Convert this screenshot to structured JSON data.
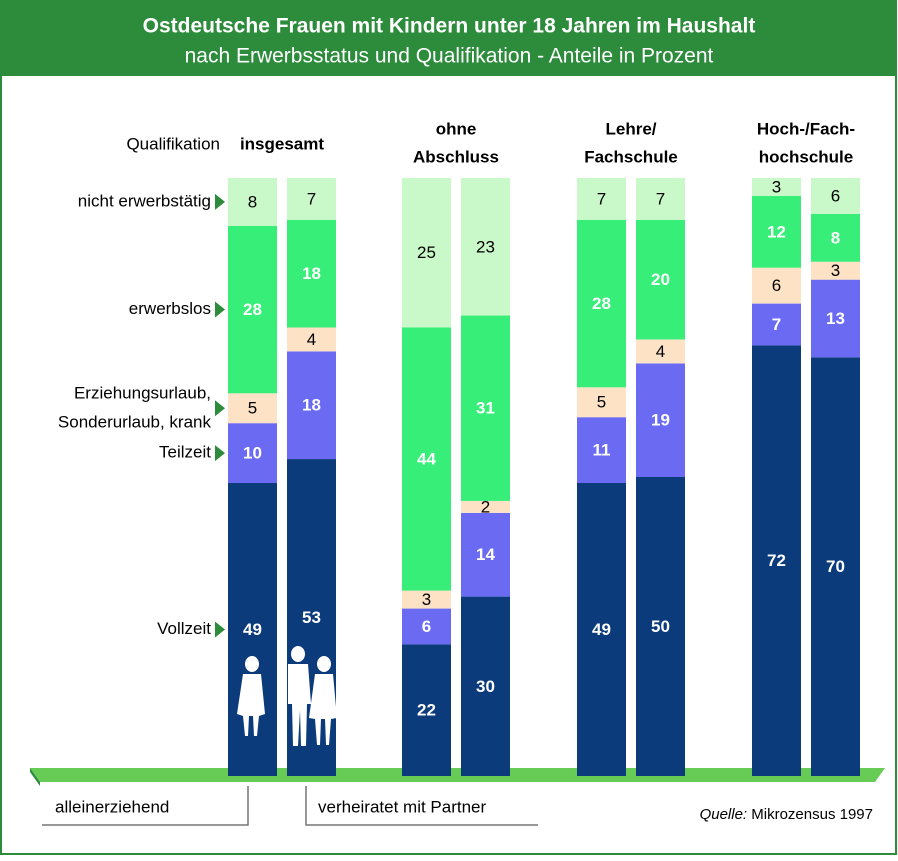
{
  "chart_data": {
    "type": "stacked-bar",
    "title": "Ostdeutsche Frauen mit Kindern unter 18 Jahren im Haushalt",
    "subtitle": "nach Erwerbsstatus und Qualifikation - Anteile in Prozent",
    "category_axis_label": "Qualifikation",
    "categories": [
      [
        "insgesamt"
      ],
      [
        "ohne",
        "Abschluss"
      ],
      [
        "Lehre/",
        "Fachschule"
      ],
      [
        "Hoch-/Fach-",
        "hochschule"
      ]
    ],
    "subgroups": [
      "alleinerziehend",
      "verheiratet mit Partner"
    ],
    "series": [
      {
        "name": "Vollzeit",
        "color": "#0b3b7b",
        "label_color": "#ffffff",
        "values": [
          [
            49,
            53
          ],
          [
            22,
            30
          ],
          [
            49,
            50
          ],
          [
            72,
            70
          ]
        ]
      },
      {
        "name": "Teilzeit",
        "color": "#6a6af2",
        "label_color": "#ffffff",
        "values": [
          [
            10,
            18
          ],
          [
            6,
            14
          ],
          [
            11,
            19
          ],
          [
            7,
            13
          ]
        ]
      },
      {
        "name": [
          "Erziehungsurlaub,",
          "Sonderurlaub, krank"
        ],
        "color": "#fde2c6",
        "label_color": "#000000",
        "values": [
          [
            5,
            4
          ],
          [
            3,
            2
          ],
          [
            5,
            4
          ],
          [
            6,
            3
          ]
        ]
      },
      {
        "name": "erwerbslos",
        "color": "#36ee78",
        "label_color": "#ffffff",
        "values": [
          [
            28,
            18
          ],
          [
            44,
            31
          ],
          [
            28,
            20
          ],
          [
            12,
            8
          ]
        ]
      },
      {
        "name": "nicht erwerbstätig",
        "color": "#c9f8c9",
        "label_color": "#000000",
        "values": [
          [
            8,
            7
          ],
          [
            25,
            23
          ],
          [
            7,
            7
          ],
          [
            3,
            6
          ]
        ]
      }
    ],
    "source_label": "Quelle:",
    "source": "Mikrozensus 1997"
  }
}
